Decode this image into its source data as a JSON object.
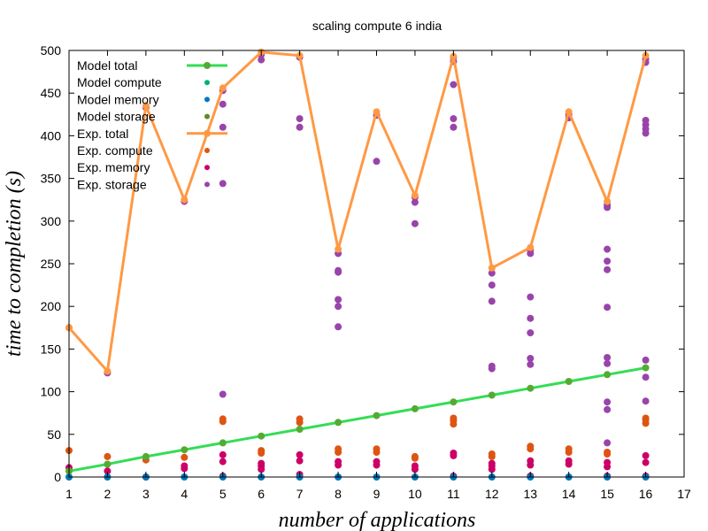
{
  "chart_data": {
    "type": "scatter",
    "title": "scaling compute 6 india",
    "xlabel": "number of applications",
    "ylabel": "time to completion (s)",
    "xlim": [
      1,
      17
    ],
    "ylim": [
      0,
      500
    ],
    "xticks": [
      1,
      2,
      3,
      4,
      5,
      6,
      7,
      8,
      9,
      10,
      11,
      12,
      13,
      14,
      15,
      16,
      17
    ],
    "yticks": [
      0,
      50,
      100,
      150,
      200,
      250,
      300,
      350,
      400,
      450,
      500
    ],
    "grid": false,
    "legend_position": "top-left",
    "series": [
      {
        "name": "Model total",
        "style": "line-points",
        "color": "#33dd55",
        "marker_color": "#55aa33",
        "points": [
          [
            1,
            7
          ],
          [
            2,
            15
          ],
          [
            3,
            24
          ],
          [
            4,
            32
          ],
          [
            5,
            40
          ],
          [
            6,
            48
          ],
          [
            7,
            56
          ],
          [
            8,
            64
          ],
          [
            9,
            72
          ],
          [
            10,
            80
          ],
          [
            11,
            88
          ],
          [
            12,
            96
          ],
          [
            13,
            104
          ],
          [
            14,
            112
          ],
          [
            15,
            120
          ],
          [
            16,
            128
          ]
        ]
      },
      {
        "name": "Model compute",
        "style": "points",
        "color": "#00b07a",
        "points": []
      },
      {
        "name": "Model memory",
        "style": "points",
        "color": "#0077bb",
        "points": [
          [
            1,
            0
          ],
          [
            2,
            0
          ],
          [
            3,
            0
          ],
          [
            4,
            0
          ],
          [
            5,
            0
          ],
          [
            6,
            0
          ],
          [
            7,
            0
          ],
          [
            8,
            0
          ],
          [
            9,
            0
          ],
          [
            10,
            0
          ],
          [
            11,
            0
          ],
          [
            12,
            0
          ],
          [
            13,
            0
          ],
          [
            14,
            0
          ],
          [
            15,
            0
          ],
          [
            16,
            0
          ]
        ]
      },
      {
        "name": "Model storage",
        "style": "points",
        "color": "#5e8a28",
        "points": []
      },
      {
        "name": "Exp.  total",
        "style": "line-points",
        "color": "#ff9944",
        "marker_color": "#ff9944",
        "points": [
          [
            1,
            175
          ],
          [
            2,
            124
          ],
          [
            3,
            435
          ],
          [
            4,
            325
          ],
          [
            5,
            456
          ],
          [
            6,
            498
          ],
          [
            7,
            494
          ],
          [
            8,
            267
          ],
          [
            9,
            428
          ],
          [
            10,
            330
          ],
          [
            11,
            493
          ],
          [
            12,
            245
          ],
          [
            13,
            269
          ],
          [
            14,
            428
          ],
          [
            15,
            323
          ],
          [
            16,
            494
          ]
        ]
      },
      {
        "name": "Exp.  compute",
        "style": "points",
        "color": "#dd5511",
        "points": [
          [
            1,
            31
          ],
          [
            2,
            24
          ],
          [
            3,
            20
          ],
          [
            4,
            23
          ],
          [
            5,
            65
          ],
          [
            5,
            68
          ],
          [
            6,
            28
          ],
          [
            6,
            31
          ],
          [
            7,
            64
          ],
          [
            7,
            68
          ],
          [
            8,
            29
          ],
          [
            8,
            33
          ],
          [
            9,
            29
          ],
          [
            9,
            33
          ],
          [
            10,
            22
          ],
          [
            10,
            24
          ],
          [
            11,
            62
          ],
          [
            11,
            66
          ],
          [
            11,
            69
          ],
          [
            12,
            24
          ],
          [
            12,
            27
          ],
          [
            13,
            33
          ],
          [
            13,
            36
          ],
          [
            14,
            29
          ],
          [
            14,
            33
          ],
          [
            15,
            27
          ],
          [
            15,
            29
          ],
          [
            16,
            63
          ],
          [
            16,
            67
          ],
          [
            16,
            69
          ]
        ]
      },
      {
        "name": "Exp.  memory",
        "style": "points",
        "color": "#cc0066",
        "points": [
          [
            1,
            11
          ],
          [
            2,
            7
          ],
          [
            3,
            0
          ],
          [
            4,
            10
          ],
          [
            4,
            13
          ],
          [
            5,
            1
          ],
          [
            5,
            18
          ],
          [
            5,
            26
          ],
          [
            6,
            9
          ],
          [
            6,
            13
          ],
          [
            6,
            16
          ],
          [
            7,
            3
          ],
          [
            7,
            19
          ],
          [
            7,
            26
          ],
          [
            8,
            14
          ],
          [
            8,
            18
          ],
          [
            9,
            14
          ],
          [
            9,
            18
          ],
          [
            10,
            9
          ],
          [
            10,
            13
          ],
          [
            11,
            1
          ],
          [
            11,
            25
          ],
          [
            11,
            28
          ],
          [
            12,
            9
          ],
          [
            12,
            13
          ],
          [
            12,
            16
          ],
          [
            13,
            1
          ],
          [
            13,
            14
          ],
          [
            13,
            19
          ],
          [
            14,
            15
          ],
          [
            14,
            19
          ],
          [
            15,
            1
          ],
          [
            15,
            12
          ],
          [
            15,
            17
          ],
          [
            16,
            1
          ],
          [
            16,
            17
          ],
          [
            16,
            25
          ]
        ]
      },
      {
        "name": "Exp.  storage",
        "style": "points",
        "color": "#9944aa",
        "points": [
          [
            1,
            175
          ],
          [
            2,
            122
          ],
          [
            3,
            433
          ],
          [
            4,
            323
          ],
          [
            5,
            344
          ],
          [
            5,
            410
          ],
          [
            5,
            437
          ],
          [
            5,
            453
          ],
          [
            5,
            97
          ],
          [
            6,
            489
          ],
          [
            6,
            495
          ],
          [
            7,
            410
          ],
          [
            7,
            420
          ],
          [
            7,
            492
          ],
          [
            8,
            176
          ],
          [
            8,
            200
          ],
          [
            8,
            208
          ],
          [
            8,
            240
          ],
          [
            8,
            242
          ],
          [
            8,
            262
          ],
          [
            9,
            370
          ],
          [
            9,
            424
          ],
          [
            10,
            297
          ],
          [
            10,
            322
          ],
          [
            10,
            328
          ],
          [
            11,
            410
          ],
          [
            11,
            420
          ],
          [
            11,
            460
          ],
          [
            11,
            487
          ],
          [
            11,
            492
          ],
          [
            12,
            206
          ],
          [
            12,
            225
          ],
          [
            12,
            239
          ],
          [
            12,
            127
          ],
          [
            12,
            130
          ],
          [
            13,
            132
          ],
          [
            13,
            139
          ],
          [
            13,
            169
          ],
          [
            13,
            186
          ],
          [
            13,
            211
          ],
          [
            13,
            262
          ],
          [
            13,
            266
          ],
          [
            14,
            421
          ],
          [
            14,
            425
          ],
          [
            15,
            40
          ],
          [
            15,
            79
          ],
          [
            15,
            88
          ],
          [
            15,
            133
          ],
          [
            15,
            140
          ],
          [
            15,
            199
          ],
          [
            15,
            243
          ],
          [
            15,
            253
          ],
          [
            15,
            267
          ],
          [
            15,
            316
          ],
          [
            15,
            319
          ],
          [
            16,
            89
          ],
          [
            16,
            117
          ],
          [
            16,
            137
          ],
          [
            16,
            403
          ],
          [
            16,
            408
          ],
          [
            16,
            413
          ],
          [
            16,
            418
          ],
          [
            16,
            486
          ],
          [
            16,
            490
          ]
        ]
      }
    ]
  }
}
